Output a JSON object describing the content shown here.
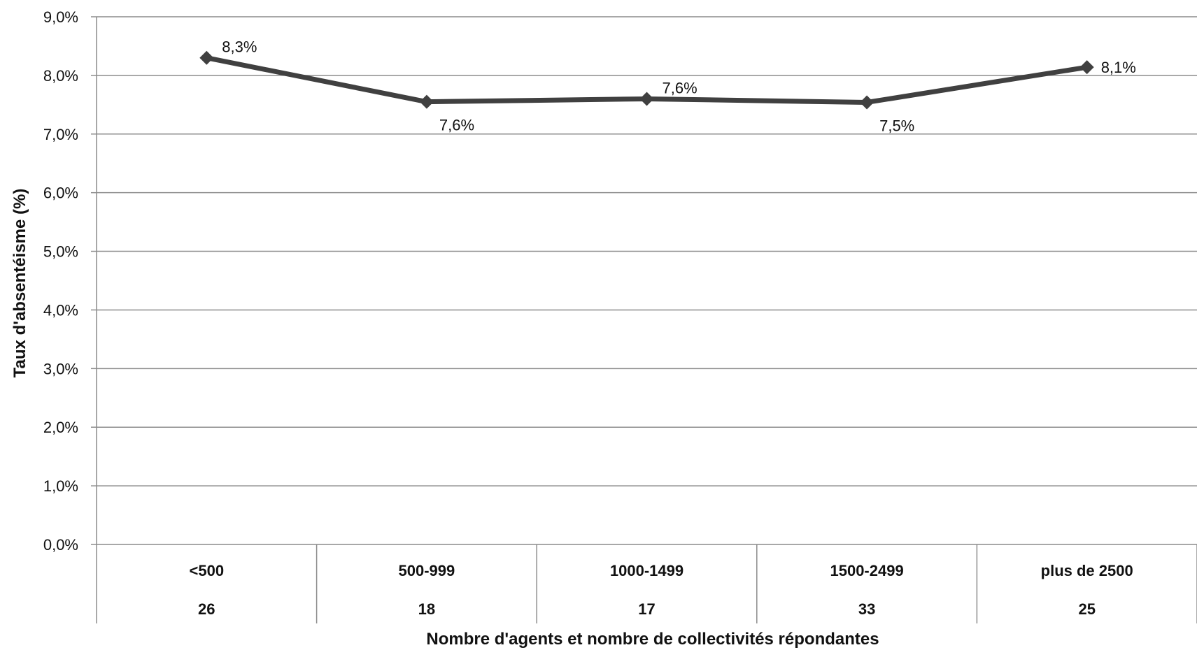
{
  "chart_data": {
    "type": "line",
    "title": "",
    "xlabel": "Nombre d'agents et nombre de collectivités répondantes",
    "ylabel": "Taux d'absentéisme (%)",
    "ylim": [
      0,
      9
    ],
    "y_ticks": [
      "0,0%",
      "1,0%",
      "2,0%",
      "3,0%",
      "4,0%",
      "5,0%",
      "6,0%",
      "7,0%",
      "8,0%",
      "9,0%"
    ],
    "grid": true,
    "legend": "none",
    "categories": [
      "<500",
      "500-999",
      "1000-1499",
      "1500-2499",
      "plus de 2500"
    ],
    "category_counts": [
      "26",
      "18",
      "17",
      "33",
      "25"
    ],
    "series": [
      {
        "values": [
          8.3,
          7.55,
          7.6,
          7.54,
          8.14
        ],
        "data_labels": [
          "8,3%",
          "7,6%",
          "7,6%",
          "7,5%",
          "8,1%"
        ],
        "label_positions": [
          "above",
          "below",
          "above",
          "below",
          "right"
        ],
        "color": "#404040",
        "marker": "diamond"
      }
    ]
  }
}
